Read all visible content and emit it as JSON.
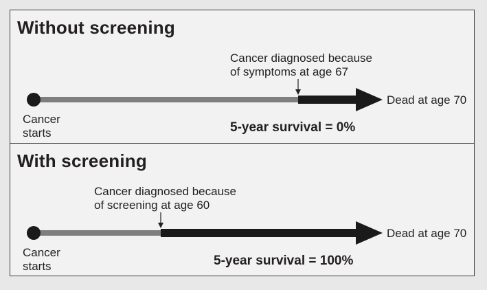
{
  "panels": [
    {
      "heading": "Without screening",
      "annotation_line1": "Cancer diagnosed because",
      "annotation_line2": "of symptoms at age 67",
      "start_line1": "Cancer",
      "start_line2": "starts",
      "end_label": "Dead at age 70",
      "survival": "5-year survival = 0%"
    },
    {
      "heading": "With screening",
      "annotation_line1": "Cancer diagnosed because",
      "annotation_line2": "of screening at age 60",
      "start_line1": "Cancer",
      "start_line2": "starts",
      "end_label": "Dead at age 70",
      "survival": "5-year survival = 100%"
    }
  ],
  "colors": {
    "pre_diagnosis_bar": "#7f7f7f",
    "post_diagnosis_bar": "#1a1a1a",
    "start_dot": "#1a1a1a",
    "border": "#3a3a3a"
  }
}
